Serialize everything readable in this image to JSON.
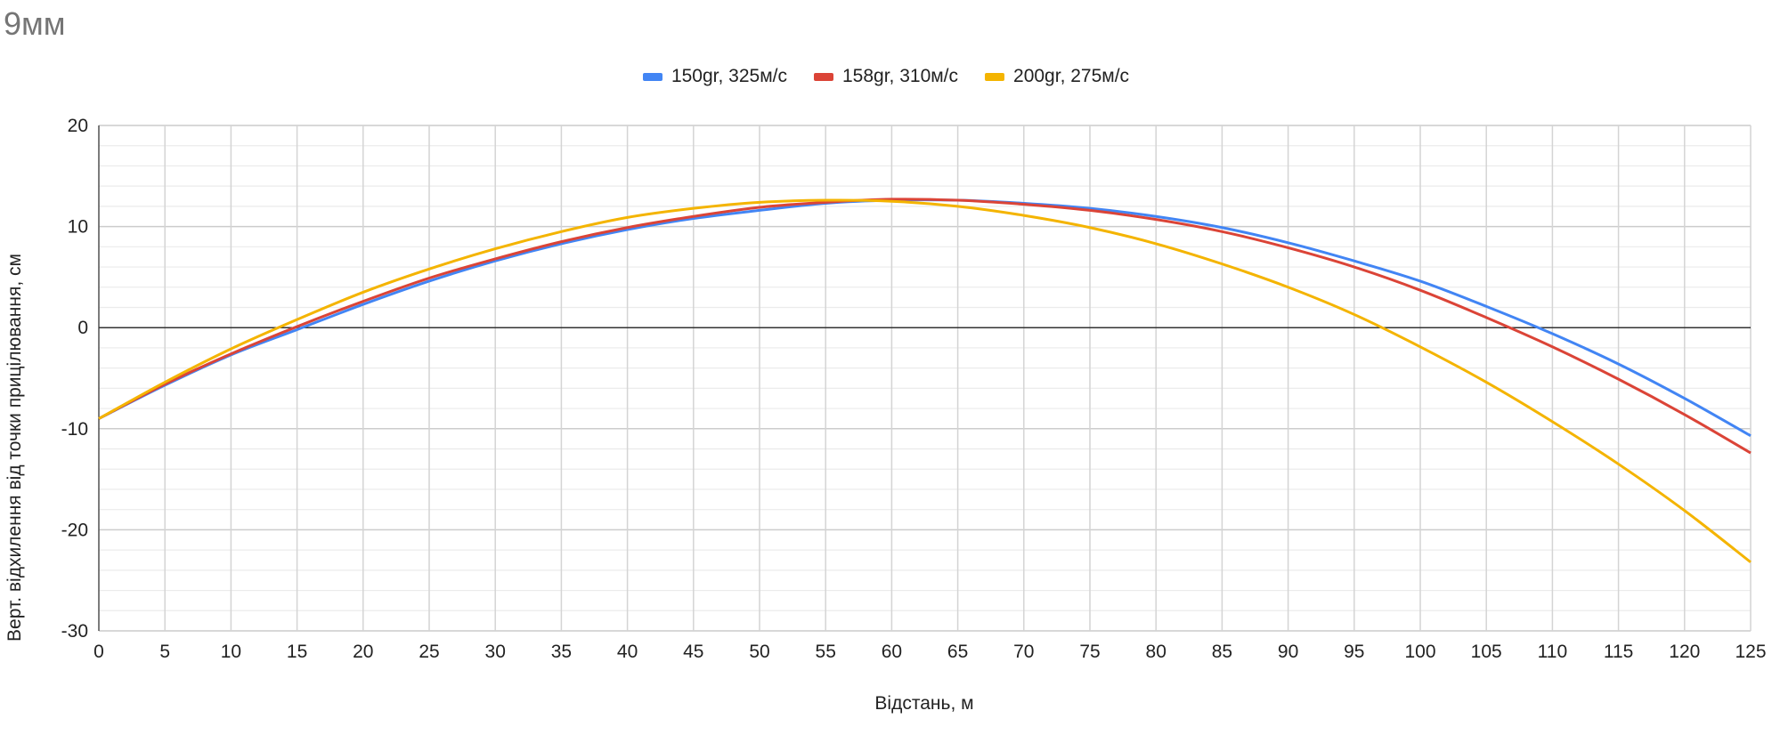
{
  "chart_data": {
    "type": "line",
    "title": "9мм",
    "xlabel": "Відстань, м",
    "ylabel": "Верт. відхилення від точки прицілювання, см",
    "xlim": [
      0,
      125
    ],
    "ylim": [
      -30,
      20
    ],
    "x_ticks": [
      0,
      5,
      10,
      15,
      20,
      25,
      30,
      35,
      40,
      45,
      50,
      55,
      60,
      65,
      70,
      75,
      80,
      85,
      90,
      95,
      100,
      105,
      110,
      115,
      120,
      125
    ],
    "y_ticks": [
      -30,
      -20,
      -10,
      0,
      10,
      20
    ],
    "grid": true,
    "legend_position": "top",
    "x": [
      0,
      5,
      10,
      15,
      20,
      25,
      30,
      35,
      40,
      45,
      50,
      55,
      60,
      65,
      70,
      75,
      80,
      85,
      90,
      95,
      100,
      105,
      110,
      115,
      120,
      125
    ],
    "series": [
      {
        "name": "150gr, 325м/с",
        "color": "#4285f4",
        "values": [
          -9.0,
          -5.7,
          -2.7,
          -0.2,
          2.3,
          4.6,
          6.6,
          8.3,
          9.7,
          10.8,
          11.6,
          12.3,
          12.6,
          12.6,
          12.3,
          11.8,
          11.0,
          9.9,
          8.4,
          6.6,
          4.6,
          2.1,
          -0.6,
          -3.6,
          -7.0,
          -10.7
        ]
      },
      {
        "name": "158gr, 310м/с",
        "color": "#db4437",
        "values": [
          -9.0,
          -5.6,
          -2.6,
          0.1,
          2.6,
          4.9,
          6.8,
          8.5,
          9.9,
          11.0,
          11.9,
          12.4,
          12.7,
          12.6,
          12.2,
          11.6,
          10.7,
          9.5,
          7.9,
          6.0,
          3.7,
          1.0,
          -1.9,
          -5.1,
          -8.6,
          -12.4
        ]
      },
      {
        "name": "200gr, 275м/с",
        "color": "#f4b400",
        "values": [
          -9.0,
          -5.4,
          -2.1,
          0.8,
          3.5,
          5.8,
          7.8,
          9.5,
          10.9,
          11.8,
          12.4,
          12.6,
          12.5,
          12.0,
          11.1,
          9.9,
          8.3,
          6.3,
          4.0,
          1.3,
          -1.9,
          -5.4,
          -9.3,
          -13.5,
          -18.1,
          -23.2
        ]
      }
    ]
  }
}
